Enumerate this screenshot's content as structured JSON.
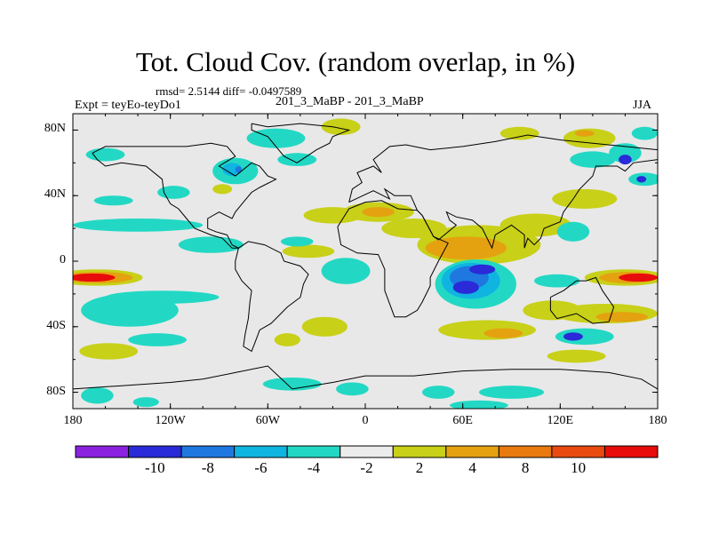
{
  "title": "Tot. Cloud Cov. (random overlap, in %)",
  "stats_line": "rmsd= 2.5144 diff= -0.0497589",
  "experiment_label": "Expt = teyEo-teyDo1",
  "case_label": "201_3_MaBP - 201_3_MaBP",
  "season_label": "JJA",
  "map": {
    "lon_range": [
      -180,
      180
    ],
    "lat_range": [
      -90,
      90
    ],
    "background_color": "#e8e8e8",
    "x_ticks": [
      {
        "lon": -180,
        "label": "180"
      },
      {
        "lon": -120,
        "label": "120W"
      },
      {
        "lon": -60,
        "label": "60W"
      },
      {
        "lon": 0,
        "label": "0"
      },
      {
        "lon": 60,
        "label": "60E"
      },
      {
        "lon": 120,
        "label": "120E"
      },
      {
        "lon": 180,
        "label": "180"
      }
    ],
    "y_ticks": [
      {
        "lat": 80,
        "label": "80N"
      },
      {
        "lat": 40,
        "label": "40N"
      },
      {
        "lat": 0,
        "label": "0"
      },
      {
        "lat": -40,
        "label": "40S"
      },
      {
        "lat": -80,
        "label": "80S"
      }
    ]
  },
  "colorbar": {
    "bins": [
      {
        "color": "#8a22e0"
      },
      {
        "color": "#2a2ad8"
      },
      {
        "color": "#1e78e0"
      },
      {
        "color": "#10b4e0"
      },
      {
        "color": "#22d8c4"
      },
      {
        "color": "#ececec"
      },
      {
        "color": "#c8d018"
      },
      {
        "color": "#e4a210"
      },
      {
        "color": "#e87a10"
      },
      {
        "color": "#e84a10"
      },
      {
        "color": "#e80c0c"
      }
    ],
    "labels": [
      "-10",
      "-8",
      "-6",
      "-4",
      "-2",
      "2",
      "4",
      "8",
      "10"
    ]
  },
  "field_patches": [
    {
      "lon": -165,
      "lat": -10,
      "rx": 28,
      "ry": 5,
      "color": "#c8d018"
    },
    {
      "lon": -165,
      "lat": -10,
      "rx": 22,
      "ry": 3.5,
      "color": "#e4a210"
    },
    {
      "lon": -168,
      "lat": -10,
      "rx": 14,
      "ry": 2.5,
      "color": "#e80c0c"
    },
    {
      "lon": -140,
      "lat": 22,
      "rx": 40,
      "ry": 4,
      "color": "#22d8c4"
    },
    {
      "lon": -155,
      "lat": 37,
      "rx": 12,
      "ry": 3,
      "color": "#22d8c4"
    },
    {
      "lon": -118,
      "lat": 42,
      "rx": 10,
      "ry": 4,
      "color": "#22d8c4"
    },
    {
      "lon": -160,
      "lat": 65,
      "rx": 12,
      "ry": 4,
      "color": "#22d8c4"
    },
    {
      "lon": -145,
      "lat": -30,
      "rx": 30,
      "ry": 10,
      "color": "#22d8c4"
    },
    {
      "lon": -125,
      "lat": -22,
      "rx": 35,
      "ry": 4,
      "color": "#22d8c4"
    },
    {
      "lon": -158,
      "lat": -55,
      "rx": 18,
      "ry": 5,
      "color": "#c8d018"
    },
    {
      "lon": -128,
      "lat": -48,
      "rx": 18,
      "ry": 4,
      "color": "#22d8c4"
    },
    {
      "lon": -165,
      "lat": -82,
      "rx": 10,
      "ry": 5,
      "color": "#22d8c4"
    },
    {
      "lon": -135,
      "lat": -86,
      "rx": 8,
      "ry": 3,
      "color": "#22d8c4"
    },
    {
      "lon": -95,
      "lat": 10,
      "rx": 20,
      "ry": 5,
      "color": "#22d8c4"
    },
    {
      "lon": -80,
      "lat": 55,
      "rx": 14,
      "ry": 8,
      "color": "#22d8c4"
    },
    {
      "lon": -82,
      "lat": 56,
      "rx": 6,
      "ry": 4,
      "color": "#10b4e0"
    },
    {
      "lon": -78,
      "lat": 56,
      "rx": 2,
      "ry": 2,
      "color": "#1e78e0"
    },
    {
      "lon": -88,
      "lat": 44,
      "rx": 6,
      "ry": 3,
      "color": "#c8d018"
    },
    {
      "lon": -55,
      "lat": 75,
      "rx": 18,
      "ry": 6,
      "color": "#22d8c4"
    },
    {
      "lon": -42,
      "lat": 62,
      "rx": 12,
      "ry": 4,
      "color": "#22d8c4"
    },
    {
      "lon": -15,
      "lat": 82,
      "rx": 12,
      "ry": 5,
      "color": "#c8d018"
    },
    {
      "lon": -20,
      "lat": 28,
      "rx": 18,
      "ry": 5,
      "color": "#c8d018"
    },
    {
      "lon": 8,
      "lat": 30,
      "rx": 22,
      "ry": 6,
      "color": "#c8d018"
    },
    {
      "lon": 8,
      "lat": 30,
      "rx": 10,
      "ry": 3,
      "color": "#e4a210"
    },
    {
      "lon": -35,
      "lat": 6,
      "rx": 16,
      "ry": 4,
      "color": "#c8d018"
    },
    {
      "lon": -12,
      "lat": -6,
      "rx": 15,
      "ry": 8,
      "color": "#22d8c4"
    },
    {
      "lon": -42,
      "lat": 12,
      "rx": 10,
      "ry": 3,
      "color": "#22d8c4"
    },
    {
      "lon": -25,
      "lat": -40,
      "rx": 14,
      "ry": 6,
      "color": "#c8d018"
    },
    {
      "lon": -48,
      "lat": -48,
      "rx": 8,
      "ry": 4,
      "color": "#c8d018"
    },
    {
      "lon": -45,
      "lat": -75,
      "rx": 18,
      "ry": 4,
      "color": "#22d8c4"
    },
    {
      "lon": -8,
      "lat": -78,
      "rx": 10,
      "ry": 4,
      "color": "#22d8c4"
    },
    {
      "lon": 70,
      "lat": 10,
      "rx": 38,
      "ry": 12,
      "color": "#c8d018"
    },
    {
      "lon": 62,
      "lat": 8,
      "rx": 25,
      "ry": 7,
      "color": "#e4a210"
    },
    {
      "lon": 30,
      "lat": 20,
      "rx": 20,
      "ry": 6,
      "color": "#c8d018"
    },
    {
      "lon": 105,
      "lat": 22,
      "rx": 22,
      "ry": 7,
      "color": "#c8d018"
    },
    {
      "lon": 135,
      "lat": 38,
      "rx": 20,
      "ry": 6,
      "color": "#c8d018"
    },
    {
      "lon": 128,
      "lat": 18,
      "rx": 10,
      "ry": 6,
      "color": "#22d8c4"
    },
    {
      "lon": 68,
      "lat": -14,
      "rx": 25,
      "ry": 15,
      "color": "#22d8c4"
    },
    {
      "lon": 65,
      "lat": -12,
      "rx": 18,
      "ry": 11,
      "color": "#10b4e0"
    },
    {
      "lon": 64,
      "lat": -10,
      "rx": 12,
      "ry": 7,
      "color": "#1e78e0"
    },
    {
      "lon": 62,
      "lat": -16,
      "rx": 8,
      "ry": 4,
      "color": "#2a2ad8"
    },
    {
      "lon": 72,
      "lat": -5,
      "rx": 8,
      "ry": 3,
      "color": "#2a2ad8"
    },
    {
      "lon": 160,
      "lat": -10,
      "rx": 25,
      "ry": 5,
      "color": "#c8d018"
    },
    {
      "lon": 162,
      "lat": -10,
      "rx": 18,
      "ry": 3.5,
      "color": "#e4a210"
    },
    {
      "lon": 168,
      "lat": -10,
      "rx": 12,
      "ry": 2.5,
      "color": "#e80c0c"
    },
    {
      "lon": 118,
      "lat": -12,
      "rx": 14,
      "ry": 4,
      "color": "#22d8c4"
    },
    {
      "lon": 115,
      "lat": -30,
      "rx": 18,
      "ry": 6,
      "color": "#c8d018"
    },
    {
      "lon": 148,
      "lat": -32,
      "rx": 32,
      "ry": 6,
      "color": "#c8d018"
    },
    {
      "lon": 158,
      "lat": -34,
      "rx": 16,
      "ry": 3,
      "color": "#e4a210"
    },
    {
      "lon": 75,
      "lat": -42,
      "rx": 30,
      "ry": 6,
      "color": "#c8d018"
    },
    {
      "lon": 85,
      "lat": -44,
      "rx": 12,
      "ry": 3,
      "color": "#e4a210"
    },
    {
      "lon": 135,
      "lat": -46,
      "rx": 18,
      "ry": 5,
      "color": "#22d8c4"
    },
    {
      "lon": 128,
      "lat": -46,
      "rx": 6,
      "ry": 2.5,
      "color": "#2a2ad8"
    },
    {
      "lon": 130,
      "lat": -58,
      "rx": 18,
      "ry": 4,
      "color": "#c8d018"
    },
    {
      "lon": 45,
      "lat": -80,
      "rx": 10,
      "ry": 4,
      "color": "#22d8c4"
    },
    {
      "lon": 90,
      "lat": -80,
      "rx": 20,
      "ry": 4,
      "color": "#22d8c4"
    },
    {
      "lon": 70,
      "lat": -88,
      "rx": 18,
      "ry": 3,
      "color": "#22d8c4"
    },
    {
      "lon": 140,
      "lat": 62,
      "rx": 14,
      "ry": 5,
      "color": "#22d8c4"
    },
    {
      "lon": 138,
      "lat": 75,
      "rx": 16,
      "ry": 6,
      "color": "#c8d018"
    },
    {
      "lon": 135,
      "lat": 78,
      "rx": 6,
      "ry": 2,
      "color": "#e4a210"
    },
    {
      "lon": 160,
      "lat": 66,
      "rx": 10,
      "ry": 6,
      "color": "#22d8c4"
    },
    {
      "lon": 160,
      "lat": 62,
      "rx": 4,
      "ry": 3,
      "color": "#2a2ad8"
    },
    {
      "lon": 172,
      "lat": 78,
      "rx": 8,
      "ry": 4,
      "color": "#22d8c4"
    },
    {
      "lon": 172,
      "lat": 50,
      "rx": 10,
      "ry": 4,
      "color": "#22d8c4"
    },
    {
      "lon": 170,
      "lat": 50,
      "rx": 3,
      "ry": 2,
      "color": "#2a2ad8"
    },
    {
      "lon": 95,
      "lat": 78,
      "rx": 12,
      "ry": 4,
      "color": "#c8d018"
    }
  ],
  "coastlines": [
    [
      [
        -70,
        84
      ],
      [
        -60,
        82
      ],
      [
        -40,
        84
      ],
      [
        -20,
        82
      ],
      [
        -10,
        80
      ],
      [
        -20,
        76
      ],
      [
        -22,
        72
      ],
      [
        -30,
        68
      ],
      [
        -42,
        60
      ],
      [
        -50,
        64
      ],
      [
        -55,
        70
      ],
      [
        -60,
        76
      ],
      [
        -70,
        80
      ],
      [
        -70,
        84
      ]
    ],
    [
      [
        -168,
        66
      ],
      [
        -160,
        70
      ],
      [
        -140,
        70
      ],
      [
        -125,
        70
      ],
      [
        -110,
        70
      ],
      [
        -95,
        72
      ],
      [
        -85,
        70
      ],
      [
        -80,
        64
      ],
      [
        -90,
        58
      ],
      [
        -80,
        52
      ],
      [
        -70,
        60
      ],
      [
        -65,
        58
      ],
      [
        -60,
        52
      ],
      [
        -55,
        50
      ],
      [
        -65,
        45
      ],
      [
        -70,
        42
      ],
      [
        -75,
        36
      ],
      [
        -80,
        30
      ],
      [
        -82,
        26
      ],
      [
        -90,
        30
      ],
      [
        -97,
        26
      ],
      [
        -97,
        20
      ],
      [
        -92,
        18
      ],
      [
        -85,
        16
      ],
      [
        -82,
        10
      ],
      [
        -78,
        8
      ],
      [
        -82,
        8
      ],
      [
        -88,
        14
      ],
      [
        -95,
        16
      ],
      [
        -105,
        20
      ],
      [
        -110,
        26
      ],
      [
        -115,
        32
      ],
      [
        -120,
        35
      ],
      [
        -124,
        42
      ],
      [
        -125,
        50
      ],
      [
        -135,
        58
      ],
      [
        -150,
        60
      ],
      [
        -160,
        58
      ],
      [
        -165,
        62
      ],
      [
        -168,
        66
      ]
    ],
    [
      [
        -78,
        8
      ],
      [
        -72,
        12
      ],
      [
        -62,
        10
      ],
      [
        -52,
        5
      ],
      [
        -50,
        0
      ],
      [
        -40,
        -3
      ],
      [
        -35,
        -8
      ],
      [
        -38,
        -14
      ],
      [
        -40,
        -22
      ],
      [
        -48,
        -28
      ],
      [
        -55,
        -35
      ],
      [
        -58,
        -38
      ],
      [
        -65,
        -42
      ],
      [
        -68,
        -50
      ],
      [
        -70,
        -55
      ],
      [
        -75,
        -52
      ],
      [
        -74,
        -45
      ],
      [
        -72,
        -35
      ],
      [
        -71,
        -25
      ],
      [
        -70,
        -18
      ],
      [
        -76,
        -12
      ],
      [
        -80,
        -5
      ],
      [
        -80,
        0
      ],
      [
        -78,
        8
      ]
    ],
    [
      [
        -10,
        36
      ],
      [
        -8,
        44
      ],
      [
        -2,
        48
      ],
      [
        -5,
        54
      ],
      [
        5,
        58
      ],
      [
        10,
        54
      ],
      [
        5,
        62
      ],
      [
        15,
        70
      ],
      [
        25,
        71
      ],
      [
        40,
        68
      ],
      [
        60,
        70
      ],
      [
        80,
        73
      ],
      [
        100,
        77
      ],
      [
        120,
        74
      ],
      [
        140,
        72
      ],
      [
        160,
        70
      ],
      [
        180,
        68
      ]
    ],
    [
      [
        180,
        62
      ],
      [
        165,
        60
      ],
      [
        160,
        55
      ],
      [
        155,
        58
      ],
      [
        142,
        58
      ],
      [
        140,
        52
      ],
      [
        132,
        44
      ],
      [
        128,
        38
      ],
      [
        122,
        30
      ],
      [
        120,
        24
      ],
      [
        110,
        20
      ],
      [
        108,
        14
      ],
      [
        104,
        10
      ],
      [
        100,
        14
      ],
      [
        98,
        8
      ],
      [
        98,
        16
      ],
      [
        90,
        22
      ],
      [
        80,
        16
      ],
      [
        78,
        8
      ],
      [
        72,
        20
      ],
      [
        66,
        25
      ],
      [
        56,
        27
      ],
      [
        50,
        30
      ],
      [
        52,
        25
      ],
      [
        56,
        22
      ],
      [
        45,
        13
      ],
      [
        42,
        15
      ],
      [
        35,
        28
      ],
      [
        32,
        31
      ],
      [
        28,
        40
      ],
      [
        18,
        40
      ],
      [
        12,
        44
      ],
      [
        15,
        38
      ],
      [
        5,
        43
      ],
      [
        -10,
        36
      ]
    ],
    [
      [
        -17,
        21
      ],
      [
        -10,
        32
      ],
      [
        0,
        36
      ],
      [
        10,
        37
      ],
      [
        20,
        32
      ],
      [
        32,
        31
      ],
      [
        35,
        28
      ],
      [
        42,
        15
      ],
      [
        51,
        11
      ],
      [
        45,
        0
      ],
      [
        40,
        -10
      ],
      [
        40,
        -15
      ],
      [
        35,
        -25
      ],
      [
        32,
        -30
      ],
      [
        25,
        -34
      ],
      [
        18,
        -34
      ],
      [
        12,
        -18
      ],
      [
        12,
        -5
      ],
      [
        8,
        4
      ],
      [
        -5,
        5
      ],
      [
        -15,
        10
      ],
      [
        -17,
        21
      ]
    ],
    [
      [
        114,
        -22
      ],
      [
        122,
        -18
      ],
      [
        130,
        -12
      ],
      [
        136,
        -12
      ],
      [
        142,
        -10
      ],
      [
        146,
        -18
      ],
      [
        153,
        -28
      ],
      [
        150,
        -37
      ],
      [
        140,
        -38
      ],
      [
        130,
        -32
      ],
      [
        118,
        -35
      ],
      [
        114,
        -30
      ],
      [
        114,
        -22
      ]
    ],
    [
      [
        -180,
        -78
      ],
      [
        -150,
        -76
      ],
      [
        -120,
        -74
      ],
      [
        -100,
        -72
      ],
      [
        -80,
        -68
      ],
      [
        -60,
        -64
      ],
      [
        -45,
        -78
      ],
      [
        -20,
        -74
      ],
      [
        0,
        -70
      ],
      [
        30,
        -70
      ],
      [
        60,
        -67
      ],
      [
        90,
        -66
      ],
      [
        120,
        -66
      ],
      [
        150,
        -68
      ],
      [
        170,
        -72
      ],
      [
        180,
        -78
      ]
    ]
  ]
}
